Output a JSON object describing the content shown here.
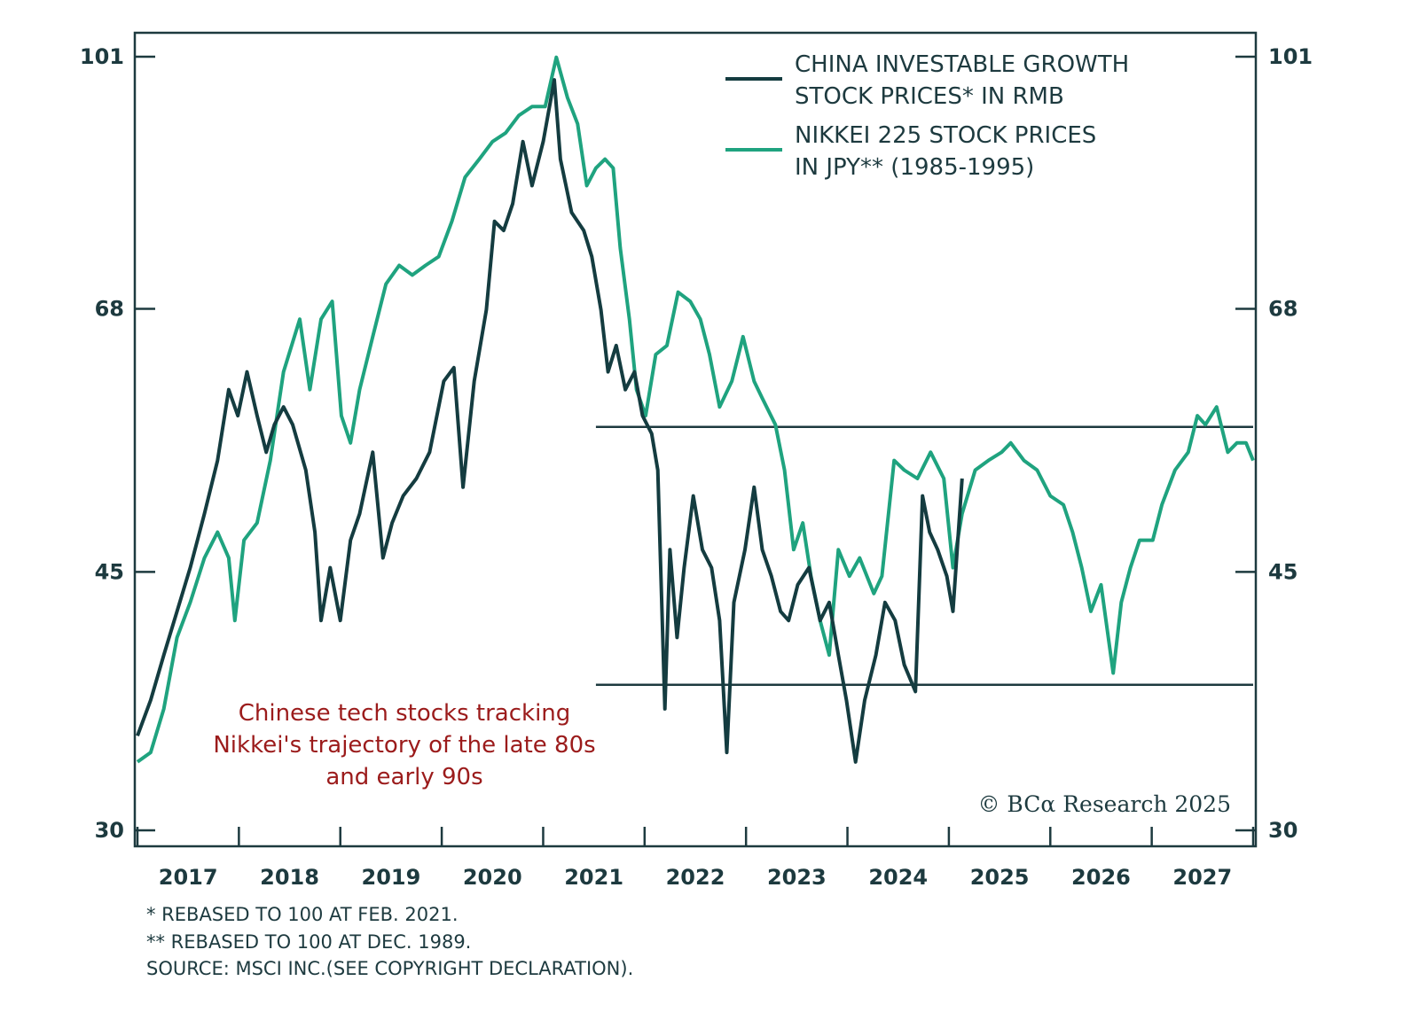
{
  "chart_data": {
    "type": "line",
    "title": "",
    "xlabel": "",
    "ylabel": "",
    "xlim": [
      2017,
      2028
    ],
    "ylim": [
      30,
      101
    ],
    "y_scale": "log",
    "y_ticks": [
      30,
      45,
      68,
      101
    ],
    "y_axes": [
      "left",
      "right"
    ],
    "x_tick_labels": [
      "2017",
      "2018",
      "2019",
      "2020",
      "2021",
      "2022",
      "2023",
      "2024",
      "2025",
      "2026",
      "2027"
    ],
    "grid": false,
    "legend_position": "top-right",
    "colors": {
      "china": "#143c40",
      "nikkei": "#1fa37f",
      "frame": "#1d3a3f",
      "annotation": "#9b1b1b"
    },
    "series": [
      {
        "name": "CHINA INVESTABLE GROWTH STOCK PRICES* IN RMB",
        "legend_lines": [
          "CHINA INVESTABLE GROWTH",
          "STOCK PRICES* IN RMB"
        ],
        "x": [
          2017.0,
          2017.13,
          2017.26,
          2017.39,
          2017.52,
          2017.66,
          2017.79,
          2017.9,
          2017.99,
          2018.08,
          2018.18,
          2018.27,
          2018.35,
          2018.44,
          2018.53,
          2018.66,
          2018.75,
          2018.81,
          2018.9,
          2019.0,
          2019.1,
          2019.19,
          2019.32,
          2019.42,
          2019.51,
          2019.62,
          2019.75,
          2019.88,
          2020.02,
          2020.12,
          2020.21,
          2020.32,
          2020.44,
          2020.52,
          2020.61,
          2020.7,
          2020.8,
          2020.89,
          2021.0,
          2021.11,
          2021.17,
          2021.28,
          2021.4,
          2021.48,
          2021.57,
          2021.64,
          2021.72,
          2021.81,
          2021.9,
          2021.98,
          2022.07,
          2022.13,
          2022.2,
          2022.25,
          2022.32,
          2022.39,
          2022.48,
          2022.57,
          2022.66,
          2022.74,
          2022.81,
          2022.88,
          2022.99,
          2023.08,
          2023.16,
          2023.25,
          2023.34,
          2023.42,
          2023.51,
          2023.62,
          2023.73,
          2023.82,
          2023.91,
          2023.99,
          2024.08,
          2024.17,
          2024.28,
          2024.37,
          2024.47,
          2024.56,
          2024.67,
          2024.74,
          2024.81,
          2024.89,
          2024.98,
          2025.04,
          2025.13
        ],
        "y": [
          34.8,
          36.8,
          39.5,
          42.3,
          45.3,
          49.3,
          53.6,
          59.9,
          57.5,
          61.6,
          57.5,
          54.3,
          56.7,
          58.3,
          56.7,
          52.8,
          47.9,
          41.7,
          45.3,
          41.7,
          47.3,
          49.3,
          54.3,
          46.0,
          48.6,
          50.7,
          52.1,
          54.3,
          60.7,
          62.0,
          51.4,
          60.7,
          67.9,
          78.0,
          76.9,
          80.2,
          88.4,
          82.5,
          88.4,
          97.4,
          86.0,
          79.1,
          76.9,
          73.8,
          67.9,
          61.6,
          64.2,
          59.9,
          61.6,
          57.5,
          55.9,
          52.8,
          36.3,
          46.6,
          40.6,
          45.3,
          50.7,
          46.6,
          45.3,
          41.7,
          33.9,
          42.9,
          46.6,
          51.4,
          46.6,
          44.7,
          42.3,
          41.7,
          44.1,
          45.3,
          41.7,
          42.9,
          39.5,
          36.8,
          33.4,
          36.8,
          39.5,
          42.9,
          41.7,
          38.9,
          37.3,
          50.7,
          47.9,
          46.6,
          44.7,
          42.3,
          52.1
        ]
      },
      {
        "name": "NIKKEI 225 STOCK PRICES IN JPY** (1985-1995)",
        "legend_lines": [
          "NIKKEI 225 STOCK PRICES",
          "IN JPY** (1985-1995)"
        ],
        "x": [
          2017.0,
          2017.13,
          2017.26,
          2017.39,
          2017.52,
          2017.66,
          2017.79,
          2017.9,
          2017.96,
          2018.05,
          2018.18,
          2018.31,
          2018.44,
          2018.6,
          2018.7,
          2018.81,
          2018.92,
          2019.01,
          2019.1,
          2019.19,
          2019.32,
          2019.45,
          2019.58,
          2019.71,
          2019.84,
          2019.97,
          2020.1,
          2020.23,
          2020.37,
          2020.5,
          2020.63,
          2020.76,
          2020.89,
          2021.02,
          2021.13,
          2021.24,
          2021.34,
          2021.43,
          2021.52,
          2021.61,
          2021.69,
          2021.76,
          2021.85,
          2021.92,
          2022.01,
          2022.11,
          2022.22,
          2022.33,
          2022.45,
          2022.55,
          2022.64,
          2022.74,
          2022.86,
          2022.97,
          2023.08,
          2023.16,
          2023.29,
          2023.38,
          2023.47,
          2023.56,
          2023.64,
          2023.73,
          2023.82,
          2023.91,
          2024.02,
          2024.12,
          2024.26,
          2024.34,
          2024.46,
          2024.56,
          2024.69,
          2024.82,
          2024.95,
          2025.04,
          2025.13,
          2025.26,
          2025.39,
          2025.52,
          2025.61,
          2025.74,
          2025.87,
          2026.0,
          2026.13,
          2026.22,
          2026.31,
          2026.4,
          2026.5,
          2026.62,
          2026.7,
          2026.79,
          2026.88,
          2027.01,
          2027.1,
          2027.23,
          2027.36,
          2027.45,
          2027.53,
          2027.64,
          2027.75,
          2027.84,
          2027.93,
          2028.0
        ],
        "y": [
          33.4,
          33.9,
          36.3,
          40.6,
          42.9,
          46.0,
          47.9,
          46.0,
          41.7,
          47.3,
          48.6,
          53.6,
          61.6,
          66.9,
          59.9,
          66.9,
          68.8,
          57.5,
          55.1,
          59.9,
          65.1,
          70.7,
          72.8,
          71.7,
          72.8,
          73.8,
          78.0,
          83.6,
          86.0,
          88.4,
          89.6,
          92.1,
          93.4,
          93.4,
          100.9,
          94.7,
          90.9,
          82.5,
          84.8,
          86.0,
          84.8,
          74.8,
          66.9,
          59.9,
          57.5,
          63.3,
          64.2,
          69.8,
          68.8,
          66.9,
          63.3,
          58.3,
          60.7,
          65.1,
          60.7,
          59.1,
          56.7,
          52.8,
          46.6,
          48.6,
          44.7,
          41.7,
          39.5,
          46.6,
          44.7,
          46.0,
          43.5,
          44.7,
          53.6,
          52.8,
          52.1,
          54.3,
          52.1,
          45.3,
          49.3,
          52.8,
          53.6,
          54.3,
          55.1,
          53.6,
          52.8,
          50.7,
          50.0,
          47.9,
          45.3,
          42.3,
          44.1,
          38.4,
          42.9,
          45.3,
          47.3,
          47.3,
          50.0,
          52.8,
          54.3,
          57.5,
          56.7,
          58.3,
          54.3,
          55.1,
          55.1,
          53.6
        ]
      }
    ],
    "reference_lines": [
      {
        "y": 56.5,
        "x_from": 2021.52,
        "x_to": 2028
      },
      {
        "y": 37.7,
        "x_from": 2021.52,
        "x_to": 2028
      }
    ],
    "annotation": [
      "Chinese tech stocks tracking",
      "Nikkei's trajectory of the late 80s",
      "and early 90s"
    ],
    "copyright": "© BCα Research 2025"
  },
  "footnotes": [
    "*  REBASED TO 100 AT FEB. 2021.",
    "** REBASED TO 100 AT DEC. 1989.",
    "SOURCE: MSCI INC.(SEE COPYRIGHT DECLARATION)."
  ]
}
